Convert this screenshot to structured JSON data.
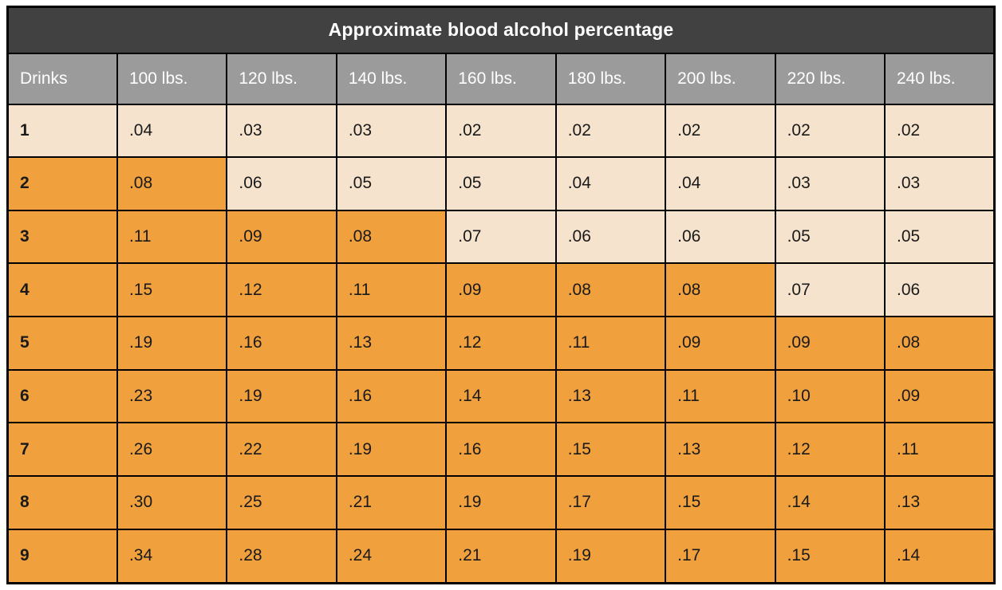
{
  "title": "Approximate blood alcohol percentage",
  "colors": {
    "title_bg": "#414141",
    "header_bg": "#9b9b9b",
    "cream": "#f5e3cd",
    "orange": "#f0a03c",
    "border": "#000000",
    "text_light": "#ffffff",
    "text_dark": "#1a1a1a"
  },
  "chart_data": {
    "type": "table",
    "title": "Approximate blood alcohol percentage",
    "columns": [
      "Drinks",
      "100 lbs.",
      "120 lbs.",
      "140 lbs.",
      "160 lbs.",
      "180 lbs.",
      "200 lbs.",
      "220 lbs.",
      "240 lbs."
    ],
    "highlight_legend": "orange cells = BAC .08 or higher; cream cells = below .08",
    "rows": [
      {
        "drinks": "1",
        "drinks_hl": 0,
        "values": [
          ".04",
          ".03",
          ".03",
          ".02",
          ".02",
          ".02",
          ".02",
          ".02"
        ],
        "hl": [
          0,
          0,
          0,
          0,
          0,
          0,
          0,
          0
        ]
      },
      {
        "drinks": "2",
        "drinks_hl": 1,
        "values": [
          ".08",
          ".06",
          ".05",
          ".05",
          ".04",
          ".04",
          ".03",
          ".03"
        ],
        "hl": [
          1,
          0,
          0,
          0,
          0,
          0,
          0,
          0
        ]
      },
      {
        "drinks": "3",
        "drinks_hl": 1,
        "values": [
          ".11",
          ".09",
          ".08",
          ".07",
          ".06",
          ".06",
          ".05",
          ".05"
        ],
        "hl": [
          1,
          1,
          1,
          0,
          0,
          0,
          0,
          0
        ]
      },
      {
        "drinks": "4",
        "drinks_hl": 1,
        "values": [
          ".15",
          ".12",
          ".11",
          ".09",
          ".08",
          ".08",
          ".07",
          ".06"
        ],
        "hl": [
          1,
          1,
          1,
          1,
          1,
          1,
          0,
          0
        ]
      },
      {
        "drinks": "5",
        "drinks_hl": 1,
        "values": [
          ".19",
          ".16",
          ".13",
          ".12",
          ".11",
          ".09",
          ".09",
          ".08"
        ],
        "hl": [
          1,
          1,
          1,
          1,
          1,
          1,
          1,
          1
        ]
      },
      {
        "drinks": "6",
        "drinks_hl": 1,
        "values": [
          ".23",
          ".19",
          ".16",
          ".14",
          ".13",
          ".11",
          ".10",
          ".09"
        ],
        "hl": [
          1,
          1,
          1,
          1,
          1,
          1,
          1,
          1
        ]
      },
      {
        "drinks": "7",
        "drinks_hl": 1,
        "values": [
          ".26",
          ".22",
          ".19",
          ".16",
          ".15",
          ".13",
          ".12",
          ".11"
        ],
        "hl": [
          1,
          1,
          1,
          1,
          1,
          1,
          1,
          1
        ]
      },
      {
        "drinks": "8",
        "drinks_hl": 1,
        "values": [
          ".30",
          ".25",
          ".21",
          ".19",
          ".17",
          ".15",
          ".14",
          ".13"
        ],
        "hl": [
          1,
          1,
          1,
          1,
          1,
          1,
          1,
          1
        ]
      },
      {
        "drinks": "9",
        "drinks_hl": 1,
        "values": [
          ".34",
          ".28",
          ".24",
          ".21",
          ".19",
          ".17",
          ".15",
          ".14"
        ],
        "hl": [
          1,
          1,
          1,
          1,
          1,
          1,
          1,
          1
        ]
      }
    ]
  }
}
